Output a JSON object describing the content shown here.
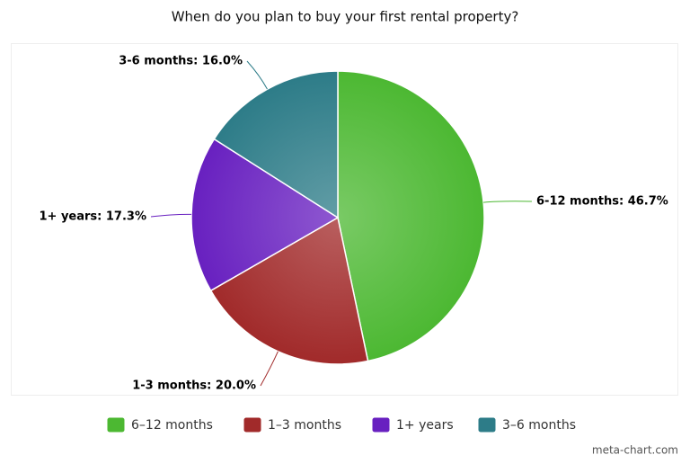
{
  "chart_data": {
    "type": "pie",
    "title": "When do you plan to buy your first rental property?",
    "categories": [
      "6–12 months",
      "1–3 months",
      "1+ years",
      "3–6 months"
    ],
    "values": [
      46.7,
      20.0,
      17.3,
      16.0
    ],
    "value_labels": [
      "6-12 months: 46.7%",
      "1-3 months: 20.0%",
      "1+ years: 17.3%",
      "3-6 months: 16.0%"
    ],
    "colors": [
      "#4cb832",
      "#a12a2a",
      "#6820c0",
      "#2d7c88"
    ],
    "credit": "meta-chart.com"
  }
}
